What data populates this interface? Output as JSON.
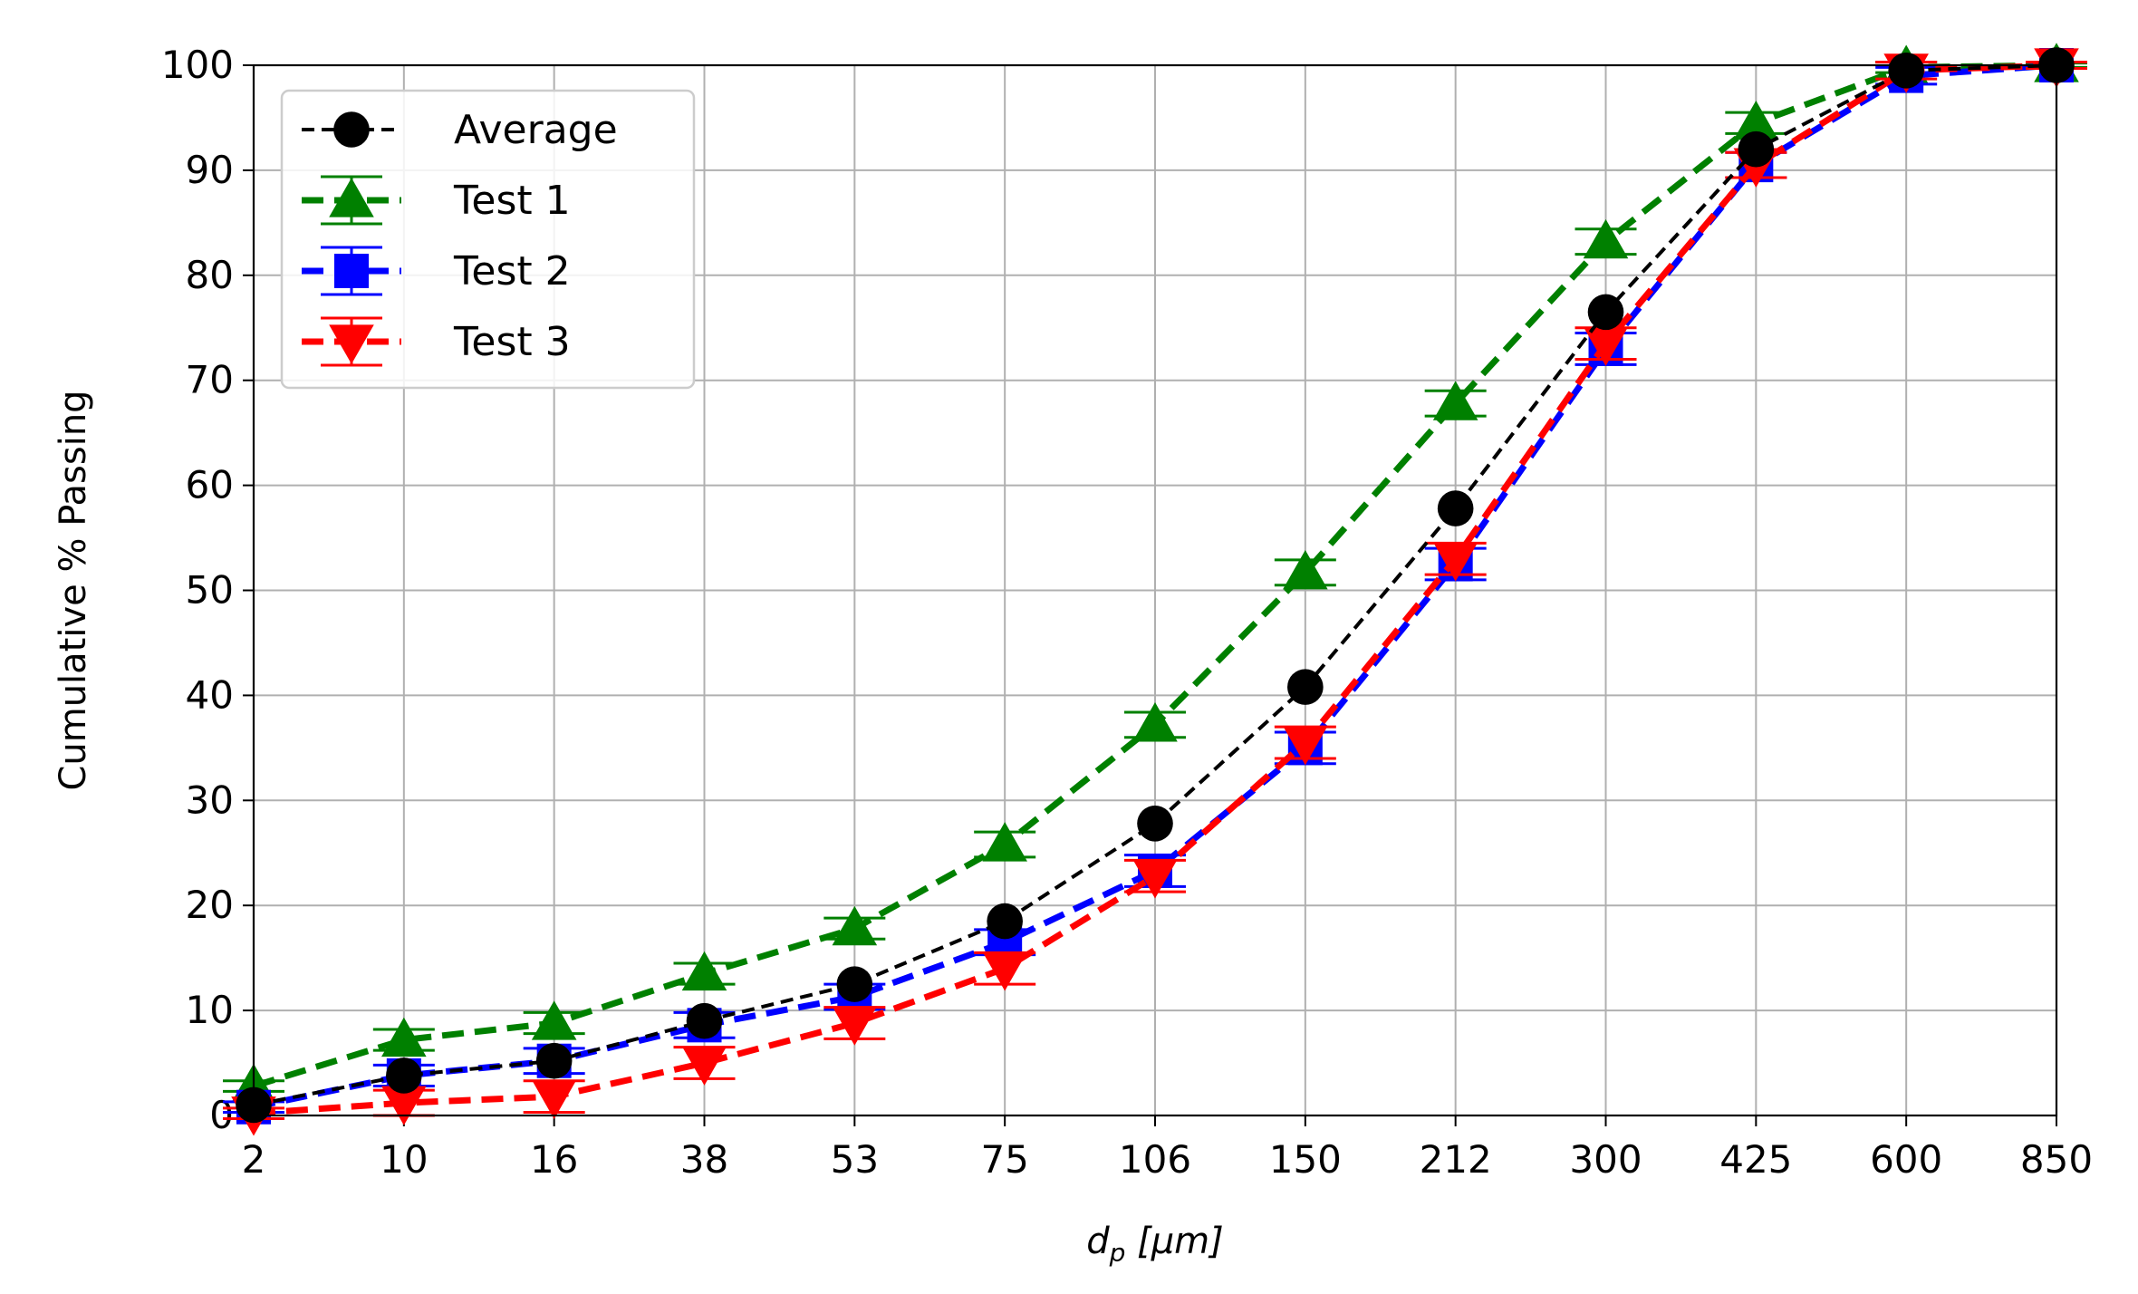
{
  "chart_data": {
    "type": "line",
    "title": "",
    "xlabel_main": "d",
    "xlabel_sub": "p",
    "xlabel_units": " [μm]",
    "ylabel": "Cumulative % Passing",
    "categories": [
      "2",
      "10",
      "16",
      "38",
      "53",
      "75",
      "106",
      "150",
      "212",
      "300",
      "425",
      "600",
      "850"
    ],
    "ylim": [
      0,
      100
    ],
    "yticks": [
      "0",
      "10",
      "20",
      "30",
      "40",
      "50",
      "60",
      "70",
      "80",
      "90",
      "100"
    ],
    "grid": true,
    "legend_position": "top-left",
    "series": [
      {
        "name": "Average",
        "color": "#000000",
        "marker": "circle",
        "error_bars": false,
        "values": [
          1.0,
          3.8,
          5.2,
          9.0,
          12.5,
          18.5,
          27.8,
          40.8,
          57.8,
          76.5,
          92.0,
          99.5,
          100
        ]
      },
      {
        "name": "Test 1",
        "color": "#008000",
        "marker": "triangle-up",
        "error_bars": true,
        "values": [
          2.8,
          7.2,
          8.8,
          13.5,
          17.8,
          25.8,
          37.2,
          51.7,
          67.8,
          83.2,
          94.5,
          99.8,
          100
        ],
        "errors": [
          0.5,
          1.0,
          1.0,
          1.0,
          1.0,
          1.2,
          1.2,
          1.2,
          1.2,
          1.2,
          1.0,
          0.5,
          0.2
        ]
      },
      {
        "name": "Test 2",
        "color": "#0000ff",
        "marker": "square",
        "error_bars": true,
        "values": [
          0.8,
          3.8,
          5.2,
          8.6,
          11.3,
          16.5,
          23.3,
          35.0,
          52.5,
          73.0,
          90.5,
          99.0,
          100
        ],
        "errors": [
          0.5,
          1.0,
          1.2,
          1.2,
          1.2,
          1.2,
          1.5,
          1.5,
          1.5,
          1.5,
          1.2,
          0.8,
          0.3
        ]
      },
      {
        "name": "Test 3",
        "color": "#ff0000",
        "marker": "triangle-down",
        "error_bars": true,
        "values": [
          0.2,
          1.2,
          1.8,
          5.0,
          8.8,
          14.0,
          22.8,
          35.5,
          53.0,
          73.5,
          90.5,
          99.5,
          100
        ],
        "errors": [
          0.5,
          1.2,
          1.5,
          1.5,
          1.5,
          1.5,
          1.5,
          1.5,
          1.5,
          1.5,
          1.2,
          0.8,
          0.3
        ]
      }
    ]
  }
}
